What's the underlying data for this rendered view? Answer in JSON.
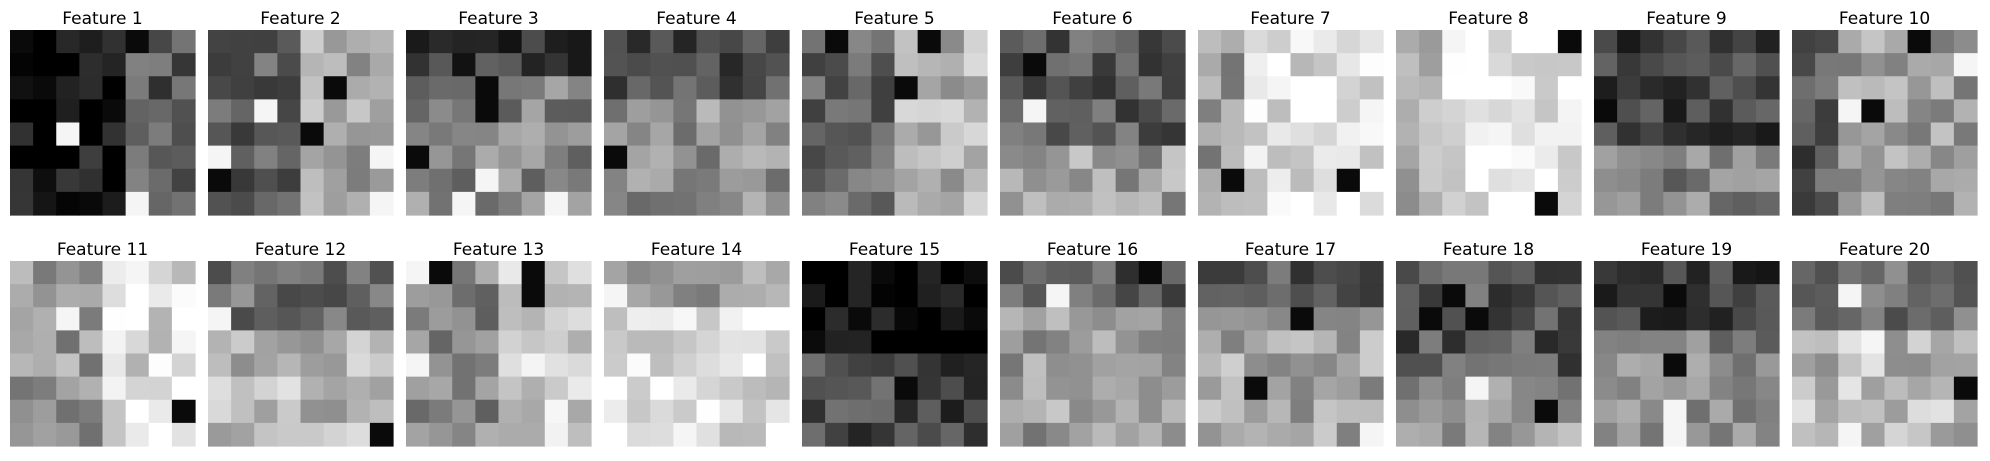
{
  "chart_data": {
    "type": "heatmap",
    "colormap": "gray",
    "grid": false,
    "titles": [
      "Feature 1",
      "Feature 2",
      "Feature 3",
      "Feature 4",
      "Feature 5",
      "Feature 6",
      "Feature 7",
      "Feature 8",
      "Feature 9",
      "Feature 10",
      "Feature 11",
      "Feature 12",
      "Feature 13",
      "Feature 14",
      "Feature 15",
      "Feature 16",
      "Feature 17",
      "Feature 18",
      "Feature 19",
      "Feature 20"
    ],
    "rows": 2,
    "cols": 10,
    "matrix_rows": 8,
    "matrix_cols": 8,
    "value_range": [
      0,
      255
    ],
    "feature_means": [
      52,
      130,
      98,
      112,
      140,
      122,
      190,
      200,
      96,
      120,
      186,
      150,
      170,
      190,
      36,
      120,
      128,
      120,
      100,
      150
    ]
  }
}
